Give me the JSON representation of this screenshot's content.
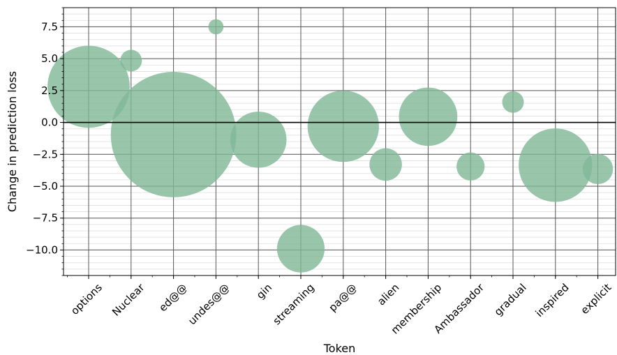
{
  "chart_data": {
    "type": "scatter",
    "xlabel": "Token",
    "ylabel": "Change in prediction loss",
    "ylim": [
      -12.0,
      9.0
    ],
    "y_ticks": [
      7.5,
      5.0,
      2.5,
      0.0,
      -2.5,
      -5.0,
      -7.5,
      -10.0
    ],
    "y_tick_labels": [
      "7.5",
      "5.0",
      "2.5",
      "0.0",
      "−2.5",
      "−5.0",
      "−7.5",
      "−10.0"
    ],
    "categories": [
      "options",
      "Nuclear",
      "ed@@",
      "undes@@",
      "gin",
      "streaming",
      "pa@@",
      "alien",
      "membership",
      "Ambassador",
      "gradual",
      "inspired",
      "explicit"
    ],
    "values": [
      2.8,
      4.85,
      -0.95,
      7.5,
      -1.35,
      -9.9,
      -0.3,
      -3.3,
      0.45,
      -3.45,
      1.6,
      -3.35,
      -3.65
    ],
    "bubble_size": [
      38,
      10,
      58,
      7,
      26,
      22,
      33,
      15,
      27,
      13,
      10,
      34,
      14
    ],
    "zero_line": true,
    "grid": true,
    "minor_grid_y": true,
    "colors": {
      "bubble": "#7fb896",
      "grid": "#555555",
      "minor_grid": "#dddddd",
      "axis": "#000000"
    }
  }
}
